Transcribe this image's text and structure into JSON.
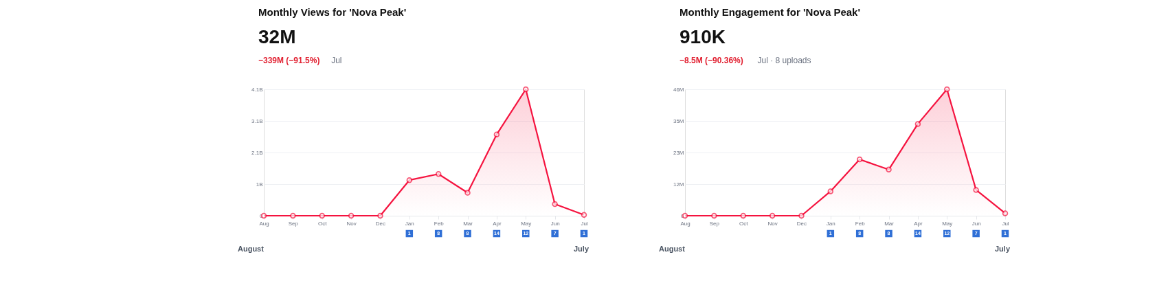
{
  "chart_data": [
    {
      "type": "area",
      "title": "Monthly Views for 'Nova Peak'",
      "subtitle": "32M",
      "categories": [
        "Aug",
        "Sep",
        "Oct",
        "Nov",
        "Dec",
        "Jan",
        "Feb",
        "Mar",
        "Apr",
        "May",
        "Jun",
        "Jul"
      ],
      "series": [
        {
          "color": "#f5133f",
          "values": [
            0,
            0,
            0,
            0,
            0,
            1.16,
            1.36,
            0.75,
            2.65,
            4.12,
            0.38,
            0.03
          ]
        }
      ],
      "ylim": [
        0,
        4.12
      ],
      "yticks": [
        0,
        {
          "value": 1.03,
          "label": "1B"
        },
        {
          "value": 2.06,
          "label": "2.1B"
        },
        {
          "value": 3.09,
          "label": "3.1B"
        },
        {
          "value": 4.12,
          "label": "4.1B"
        }
      ],
      "grid": "y",
      "marker": "circle",
      "annotations": [
        "−339M (−91.5%)",
        "Jul",
        "August",
        "July",
        "1",
        "8",
        "8",
        "14",
        "12",
        "7",
        "1"
      ]
    },
    {
      "type": "area",
      "title": "Monthly Engagement for 'Nova Peak'",
      "subtitle": "910K",
      "categories": [
        "Aug",
        "Sep",
        "Oct",
        "Nov",
        "Dec",
        "Jan",
        "Feb",
        "Mar",
        "Apr",
        "May",
        "Jun",
        "Jul"
      ],
      "series": [
        {
          "color": "#f5133f",
          "values": [
            0,
            0,
            0,
            0,
            0,
            8.9,
            20.5,
            16.8,
            33.4,
            46,
            9.4,
            0.9
          ]
        }
      ],
      "ylim": [
        0,
        46
      ],
      "yticks": [
        0,
        {
          "value": 11.5,
          "label": "12M"
        },
        {
          "value": 23,
          "label": "23M"
        },
        {
          "value": 34.5,
          "label": "35M"
        },
        {
          "value": 46,
          "label": "46M"
        }
      ],
      "grid": "y",
      "marker": "circle",
      "annotations": [
        "−8.5M (−90.36%)",
        "Jul · 8 uploads",
        "August",
        "July",
        "1",
        "8",
        "8",
        "14",
        "12",
        "7",
        "1"
      ]
    }
  ]
}
